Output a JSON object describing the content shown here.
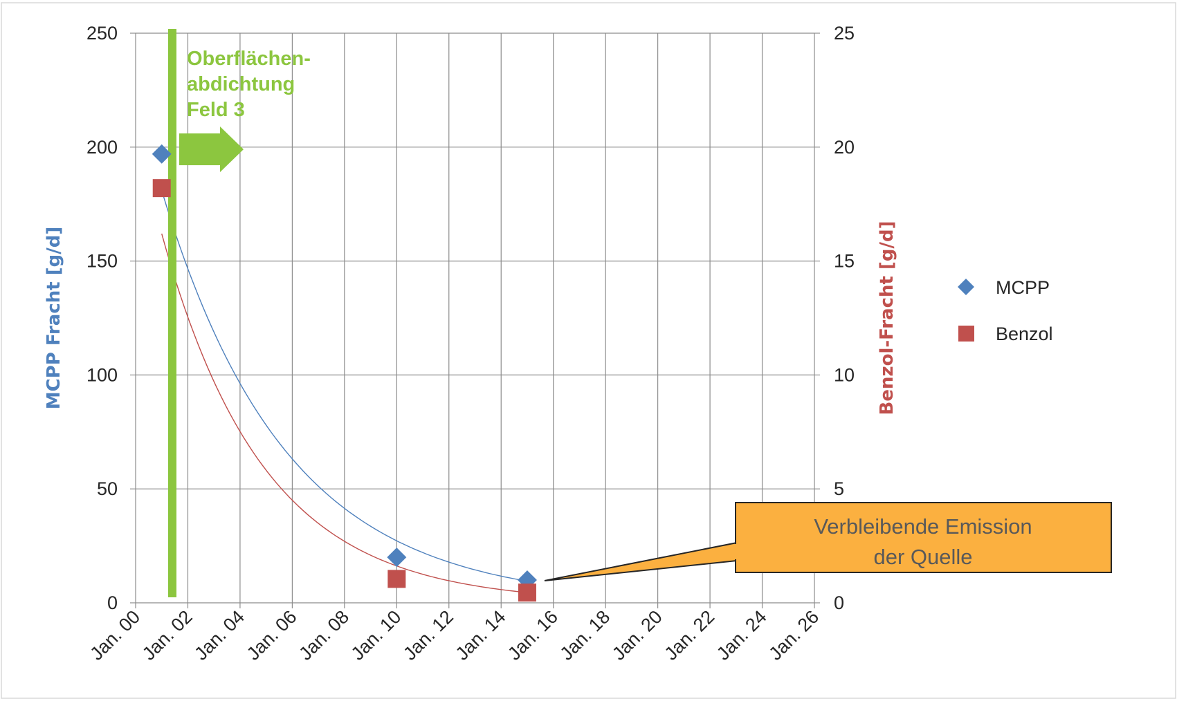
{
  "chart_data": {
    "type": "scatter",
    "x_axis": {
      "type": "date",
      "min": "2000-01",
      "max": "2026-01",
      "tick_labels": [
        "Jan. 00",
        "Jan. 02",
        "Jan. 04",
        "Jan. 06",
        "Jan. 08",
        "Jan. 10",
        "Jan. 12",
        "Jan. 14",
        "Jan. 16",
        "Jan. 18",
        "Jan. 20",
        "Jan. 22",
        "Jan. 24",
        "Jan. 26"
      ],
      "tick_values": [
        2000,
        2002,
        2004,
        2006,
        2008,
        2010,
        2012,
        2014,
        2016,
        2018,
        2020,
        2022,
        2024,
        2026
      ],
      "grid": true
    },
    "y_axis_left": {
      "label": "MCPP Fracht [g/d]",
      "ylim": [
        0,
        250
      ],
      "tick_labels": [
        "0",
        "50",
        "100",
        "150",
        "200",
        "250"
      ],
      "tick_values": [
        0,
        50,
        100,
        150,
        200,
        250
      ],
      "color": "#4f81bd",
      "grid": true
    },
    "y_axis_right": {
      "label": "Benzol-Fracht [g/d]",
      "ylim": [
        0,
        25
      ],
      "tick_labels": [
        "0",
        "5",
        "10",
        "15",
        "20",
        "25"
      ],
      "tick_values": [
        0,
        5,
        10,
        15,
        20,
        25
      ],
      "color": "#c0504d"
    },
    "series": [
      {
        "name": "MCPP",
        "axis": "left",
        "marker": "diamond",
        "color": "#4f81bd",
        "x": [
          2001.0,
          2010.0,
          2015.0
        ],
        "y": [
          197,
          20,
          10
        ],
        "trendline": {
          "type": "exponential",
          "x_range": [
            2001.0,
            2015.0
          ],
          "y_range": [
            181,
            9.5
          ]
        }
      },
      {
        "name": "Benzol",
        "axis": "right",
        "marker": "square",
        "color": "#c0504d",
        "x": [
          2001.0,
          2010.0,
          2015.0
        ],
        "y": [
          18.2,
          1.05,
          0.45
        ],
        "trendline": {
          "type": "exponential",
          "x_range": [
            2001.0,
            2015.0
          ],
          "y_range": [
            16.2,
            0.45
          ]
        }
      }
    ],
    "legend": {
      "position": "right",
      "entries": [
        "MCPP",
        "Benzol"
      ]
    },
    "annotations": {
      "event_line": {
        "x": 2001.5,
        "color": "#8cc63f",
        "lines": [
          "Oberflächen-",
          "abdichtung",
          "Feld 3"
        ]
      },
      "callout": {
        "lines": [
          "Verbleibende Emission",
          "der Quelle"
        ],
        "fill": "#fbb040",
        "border": "#262626"
      }
    }
  }
}
